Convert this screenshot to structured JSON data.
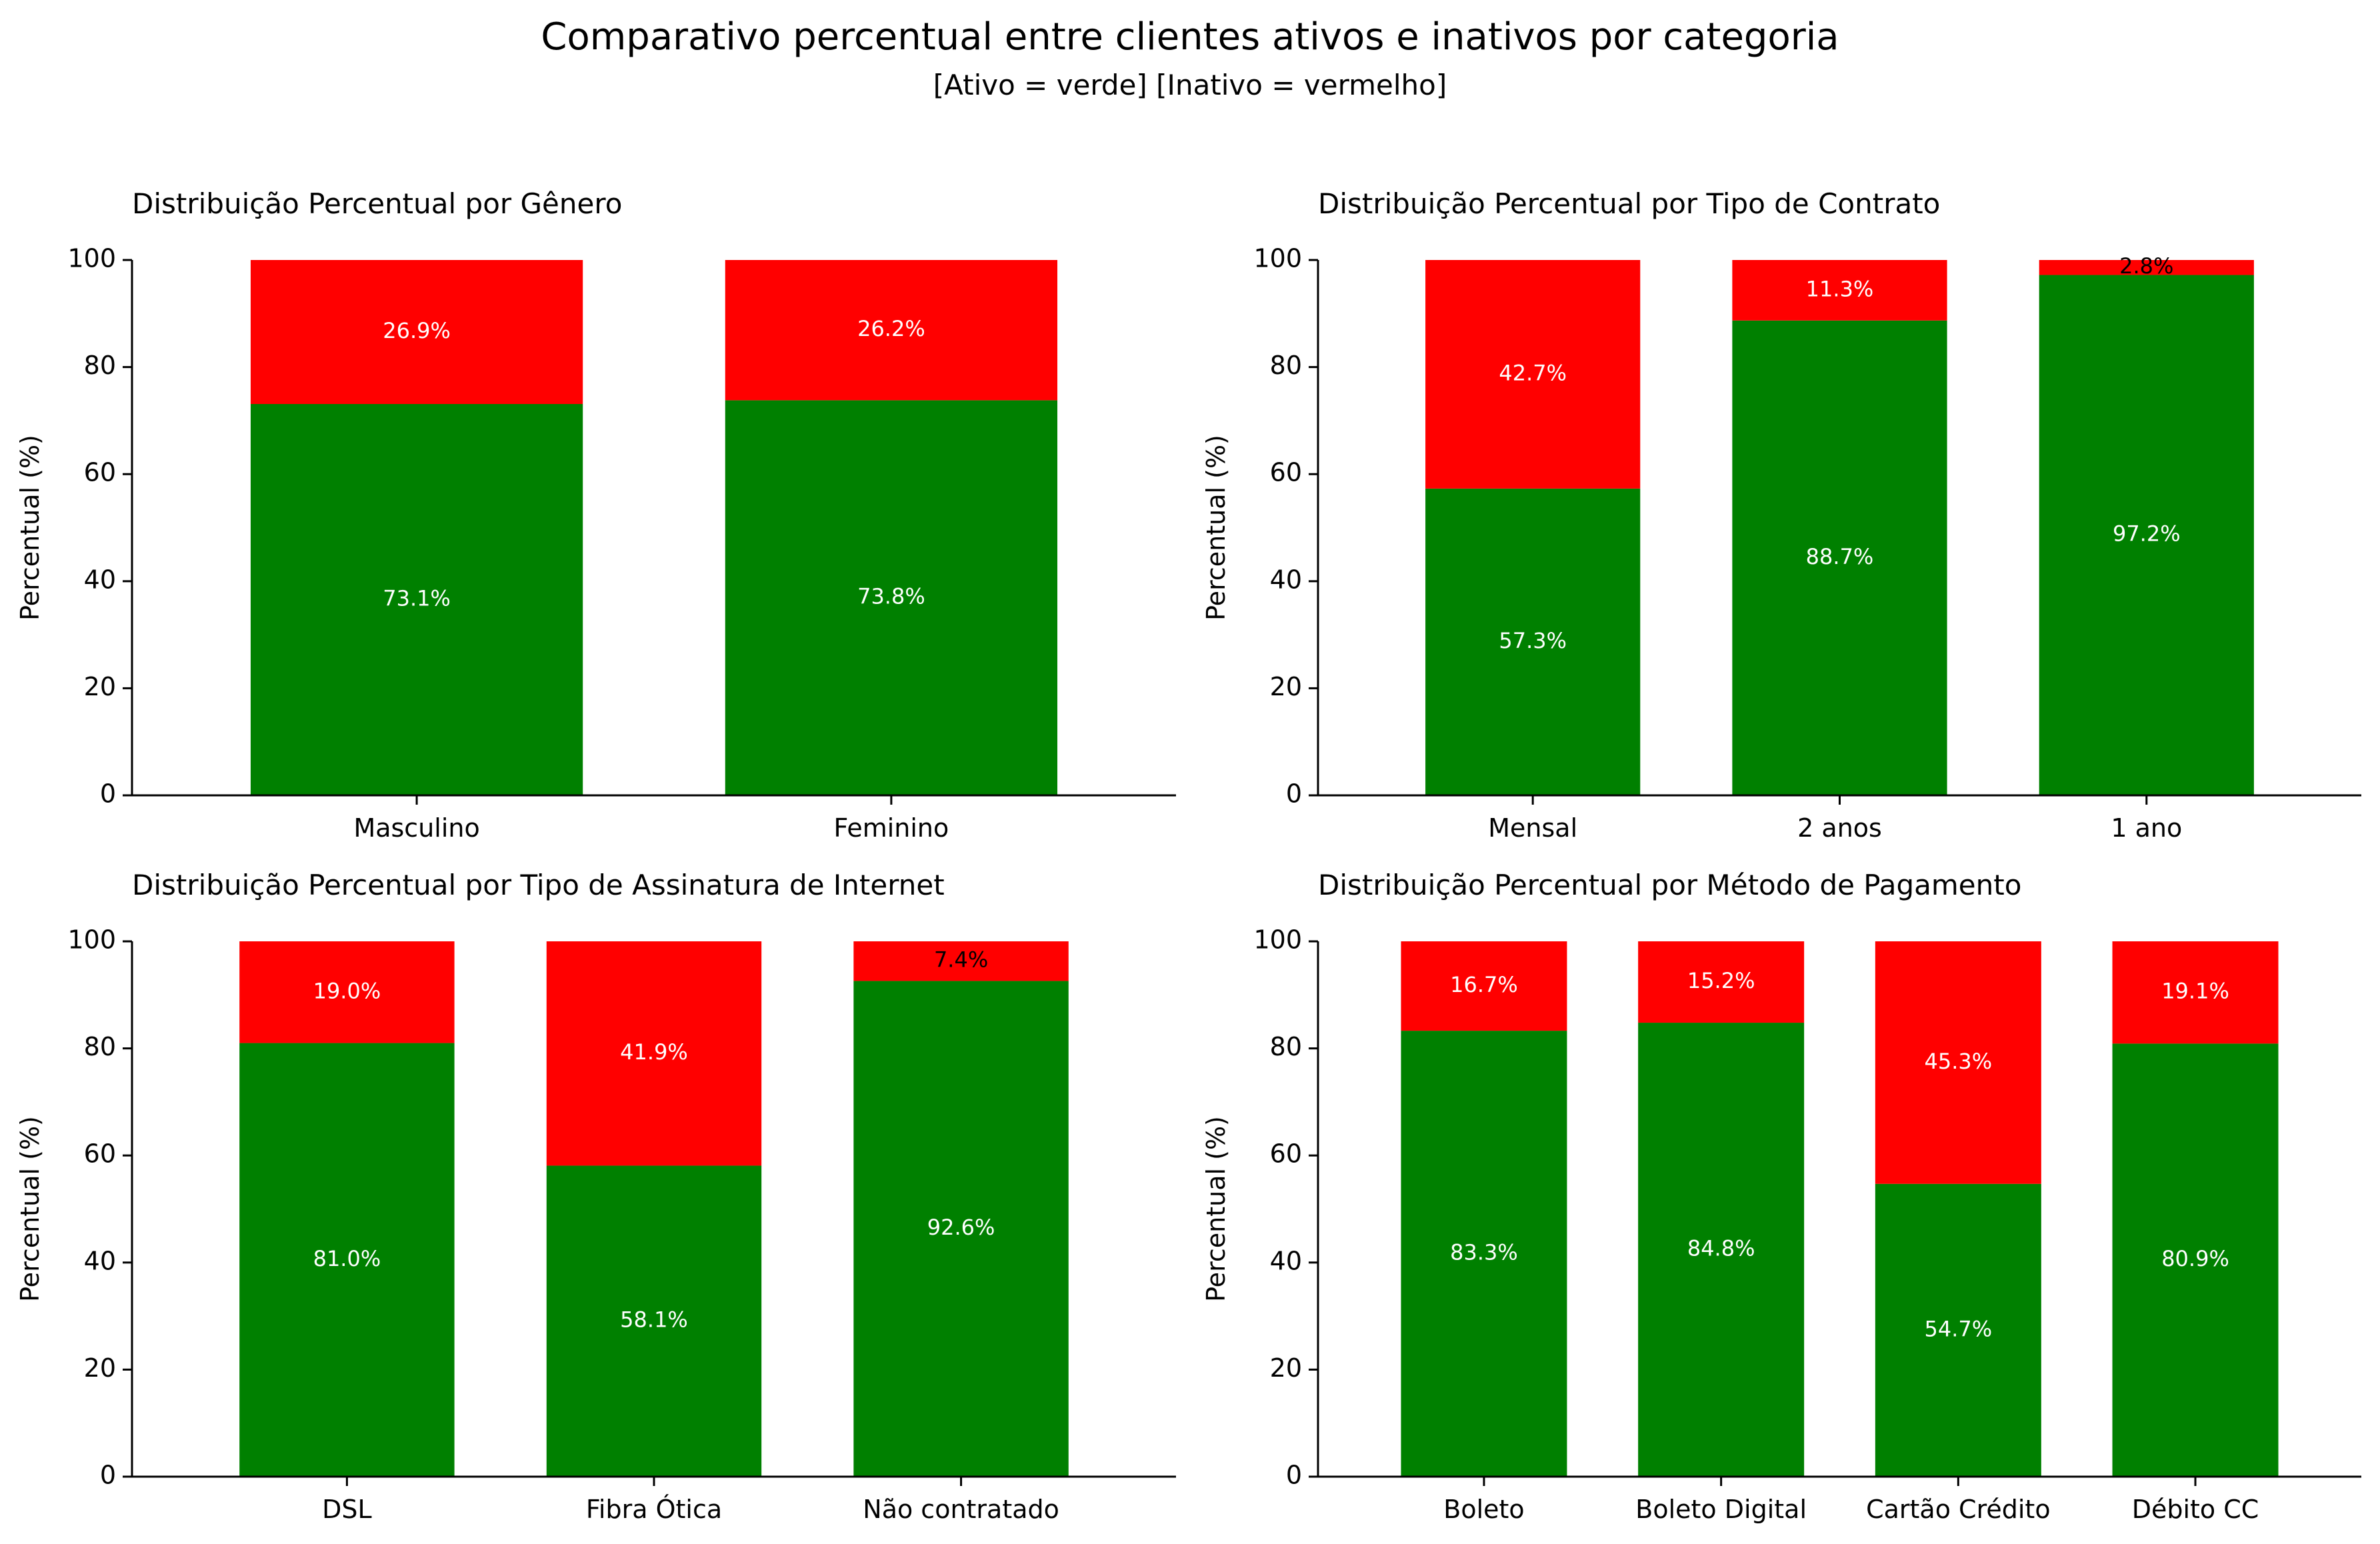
{
  "figure": {
    "title": "Comparativo percentual entre clientes ativos e inativos por categoria",
    "subtitle": "[Ativo = verde]  [Inativo = vermelho]"
  },
  "colors": {
    "ativo": "#008000",
    "inativo": "#ff0000"
  },
  "chart_data": [
    {
      "type": "bar",
      "stacked": true,
      "title": "Distribuição Percentual por Gênero",
      "xlabel": "",
      "ylabel": "Percentual (%)",
      "ylim": [
        0,
        100
      ],
      "yticks": [
        0,
        20,
        40,
        60,
        80,
        100
      ],
      "categories": [
        "Masculino",
        "Feminino"
      ],
      "series": [
        {
          "key": "ativo",
          "values": [
            73.1,
            73.8
          ],
          "labels": [
            "73.1%",
            "73.8%"
          ]
        },
        {
          "key": "inativo",
          "values": [
            26.9,
            26.2
          ],
          "labels": [
            "26.9%",
            "26.2%"
          ]
        }
      ]
    },
    {
      "type": "bar",
      "stacked": true,
      "title": "Distribuição Percentual por Tipo de Contrato",
      "xlabel": "",
      "ylabel": "Percentual (%)",
      "ylim": [
        0,
        100
      ],
      "yticks": [
        0,
        20,
        40,
        60,
        80,
        100
      ],
      "categories": [
        "Mensal",
        "2 anos",
        "1 ano"
      ],
      "series": [
        {
          "key": "ativo",
          "values": [
            57.3,
            88.7,
            97.2
          ],
          "labels": [
            "57.3%",
            "88.7%",
            "97.2%"
          ]
        },
        {
          "key": "inativo",
          "values": [
            42.7,
            11.3,
            2.8
          ],
          "labels": [
            "42.7%",
            "11.3%",
            "2.8%"
          ]
        }
      ]
    },
    {
      "type": "bar",
      "stacked": true,
      "title": "Distribuição Percentual por Tipo de Assinatura de Internet",
      "xlabel": "",
      "ylabel": "Percentual (%)",
      "ylim": [
        0,
        100
      ],
      "yticks": [
        0,
        20,
        40,
        60,
        80,
        100
      ],
      "categories": [
        "DSL",
        "Fibra Ótica",
        "Não contratado"
      ],
      "series": [
        {
          "key": "ativo",
          "values": [
            81.0,
            58.1,
            92.6
          ],
          "labels": [
            "81.0%",
            "58.1%",
            "92.6%"
          ]
        },
        {
          "key": "inativo",
          "values": [
            19.0,
            41.9,
            7.4
          ],
          "labels": [
            "19.0%",
            "41.9%",
            "7.4%"
          ]
        }
      ]
    },
    {
      "type": "bar",
      "stacked": true,
      "title": "Distribuição Percentual por Método de Pagamento",
      "xlabel": "",
      "ylabel": "Percentual (%)",
      "ylim": [
        0,
        100
      ],
      "yticks": [
        0,
        20,
        40,
        60,
        80,
        100
      ],
      "categories": [
        "Boleto",
        "Boleto Digital",
        "Cartão Crédito",
        "Débito CC"
      ],
      "series": [
        {
          "key": "ativo",
          "values": [
            83.3,
            84.8,
            54.7,
            80.9
          ],
          "labels": [
            "83.3%",
            "84.8%",
            "54.7%",
            "80.9%"
          ]
        },
        {
          "key": "inativo",
          "values": [
            16.7,
            15.2,
            45.3,
            19.1
          ],
          "labels": [
            "16.7%",
            "15.2%",
            "45.3%",
            "19.1%"
          ]
        }
      ]
    }
  ]
}
